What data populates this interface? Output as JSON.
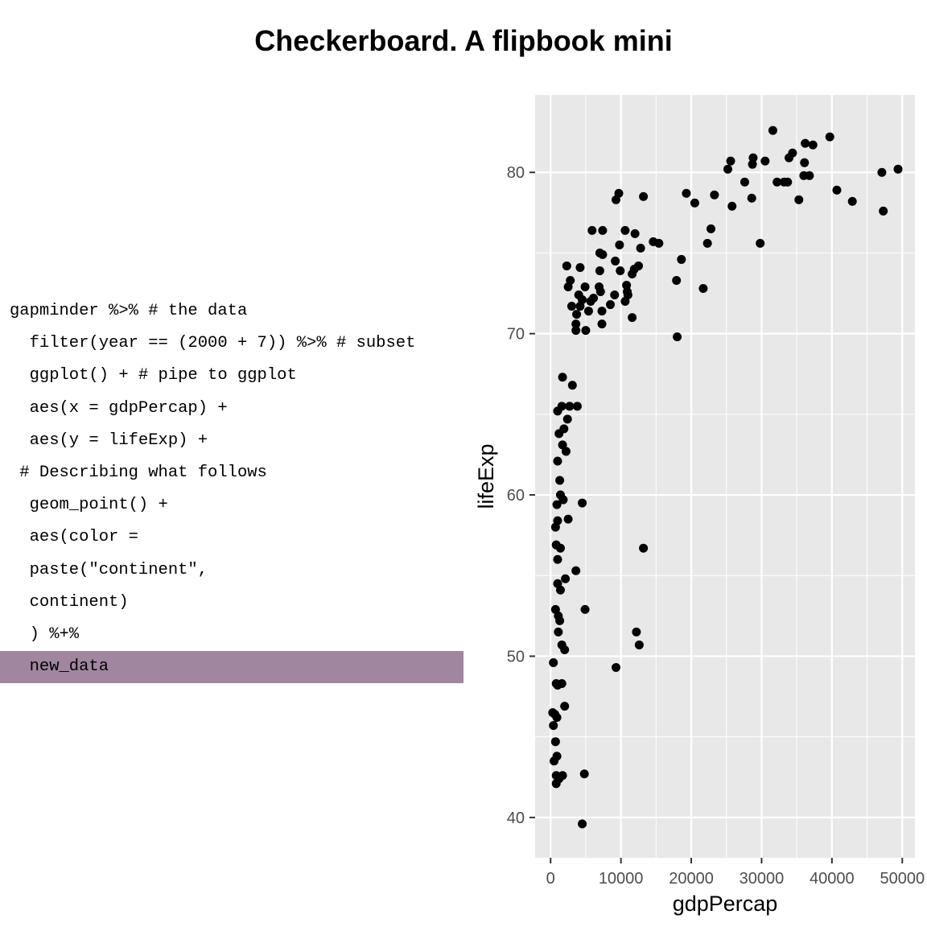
{
  "title": "Checkerboard. A flipbook mini",
  "code": {
    "highlight_color": "#a0869f",
    "lines": [
      {
        "text": "gapminder %>% # the data",
        "highlighted": false
      },
      {
        "text": "  filter(year == (2000 + 7)) %>% # subset",
        "highlighted": false
      },
      {
        "text": "  ggplot() + # pipe to ggplot",
        "highlighted": false
      },
      {
        "text": "  aes(x = gdpPercap) +",
        "highlighted": false
      },
      {
        "text": "  aes(y = lifeExp) +",
        "highlighted": false
      },
      {
        "text": " # Describing what follows",
        "highlighted": false
      },
      {
        "text": "  geom_point() +",
        "highlighted": false
      },
      {
        "text": "  aes(color =",
        "highlighted": false
      },
      {
        "text": "  paste(\"continent\",",
        "highlighted": false
      },
      {
        "text": "  continent)",
        "highlighted": false
      },
      {
        "text": "  ) %+%",
        "highlighted": false
      },
      {
        "text": "  new_data",
        "highlighted": true
      }
    ]
  },
  "chart_data": {
    "type": "scatter",
    "title": "",
    "xlabel": "gdpPercap",
    "ylabel": "lifeExp",
    "xlim": [
      -2200,
      51800
    ],
    "ylim": [
      37.5,
      84.8
    ],
    "xticks": [
      0,
      10000,
      20000,
      30000,
      40000,
      50000
    ],
    "yticks": [
      40,
      50,
      60,
      70,
      80
    ],
    "grid": true,
    "panel_color": "#e8e8e8",
    "point_color": "#000000",
    "points": [
      [
        31600,
        82.6
      ],
      [
        39700,
        82.2
      ],
      [
        36200,
        81.8
      ],
      [
        37300,
        81.7
      ],
      [
        34400,
        81.2
      ],
      [
        33900,
        80.9
      ],
      [
        28800,
        80.9
      ],
      [
        25600,
        80.7
      ],
      [
        30500,
        80.7
      ],
      [
        28700,
        80.5
      ],
      [
        36100,
        80.6
      ],
      [
        49400,
        80.2
      ],
      [
        25200,
        80.2
      ],
      [
        47100,
        80.0
      ],
      [
        36000,
        79.8
      ],
      [
        36800,
        79.8
      ],
      [
        27600,
        79.4
      ],
      [
        32200,
        79.4
      ],
      [
        33200,
        79.4
      ],
      [
        33700,
        79.4
      ],
      [
        40700,
        78.9
      ],
      [
        19300,
        78.7
      ],
      [
        9700,
        78.7
      ],
      [
        13200,
        78.5
      ],
      [
        23300,
        78.6
      ],
      [
        28600,
        78.4
      ],
      [
        35300,
        78.3
      ],
      [
        9300,
        78.3
      ],
      [
        42900,
        78.2
      ],
      [
        20500,
        78.1
      ],
      [
        25800,
        77.9
      ],
      [
        47300,
        77.6
      ],
      [
        5900,
        76.4
      ],
      [
        7400,
        76.4
      ],
      [
        10600,
        76.4
      ],
      [
        12000,
        76.2
      ],
      [
        22800,
        76.5
      ],
      [
        14600,
        75.7
      ],
      [
        15400,
        75.6
      ],
      [
        29800,
        75.6
      ],
      [
        22300,
        75.6
      ],
      [
        9800,
        75.5
      ],
      [
        12800,
        75.3
      ],
      [
        7000,
        75.0
      ],
      [
        7400,
        74.9
      ],
      [
        18600,
        74.6
      ],
      [
        9200,
        74.5
      ],
      [
        2300,
        74.2
      ],
      [
        4200,
        74.1
      ],
      [
        12500,
        74.2
      ],
      [
        11900,
        74.0
      ],
      [
        11600,
        73.7
      ],
      [
        9900,
        73.9
      ],
      [
        7000,
        73.9
      ],
      [
        17900,
        73.3
      ],
      [
        2800,
        73.3
      ],
      [
        10800,
        73.0
      ],
      [
        2500,
        72.9
      ],
      [
        4900,
        72.9
      ],
      [
        6900,
        72.9
      ],
      [
        10900,
        72.6
      ],
      [
        11000,
        72.4
      ],
      [
        7100,
        72.6
      ],
      [
        4000,
        72.4
      ],
      [
        6100,
        72.2
      ],
      [
        4500,
        72.1
      ],
      [
        5700,
        72.0
      ],
      [
        9100,
        72.4
      ],
      [
        10600,
        72.0
      ],
      [
        8500,
        71.8
      ],
      [
        4200,
        71.7
      ],
      [
        3000,
        71.7
      ],
      [
        7300,
        71.4
      ],
      [
        5400,
        71.4
      ],
      [
        3700,
        71.2
      ],
      [
        11600,
        71.0
      ],
      [
        3600,
        70.6
      ],
      [
        7300,
        70.6
      ],
      [
        3600,
        70.2
      ],
      [
        5000,
        70.2
      ],
      [
        18000,
        69.8
      ],
      [
        21700,
        72.8
      ],
      [
        1700,
        67.3
      ],
      [
        3100,
        66.8
      ],
      [
        1600,
        65.5
      ],
      [
        2700,
        65.5
      ],
      [
        3800,
        65.5
      ],
      [
        1000,
        65.2
      ],
      [
        2400,
        64.7
      ],
      [
        1900,
        64.1
      ],
      [
        1200,
        63.8
      ],
      [
        1700,
        63.1
      ],
      [
        2200,
        62.7
      ],
      [
        1000,
        62.1
      ],
      [
        1300,
        60.9
      ],
      [
        1400,
        60.0
      ],
      [
        1800,
        59.7
      ],
      [
        900,
        59.4
      ],
      [
        4500,
        59.5
      ],
      [
        2500,
        58.5
      ],
      [
        1000,
        58.4
      ],
      [
        700,
        58.0
      ],
      [
        800,
        56.9
      ],
      [
        1400,
        56.7
      ],
      [
        13200,
        56.7
      ],
      [
        1000,
        56.0
      ],
      [
        3600,
        55.3
      ],
      [
        2100,
        54.8
      ],
      [
        1000,
        54.5
      ],
      [
        1400,
        54.1
      ],
      [
        700,
        52.9
      ],
      [
        1100,
        52.5
      ],
      [
        1300,
        52.2
      ],
      [
        4900,
        52.9
      ],
      [
        1100,
        51.5
      ],
      [
        12200,
        51.5
      ],
      [
        12600,
        50.7
      ],
      [
        1600,
        50.7
      ],
      [
        2000,
        50.4
      ],
      [
        400,
        49.6
      ],
      [
        9300,
        49.3
      ],
      [
        800,
        48.3
      ],
      [
        1600,
        48.3
      ],
      [
        1000,
        48.2
      ],
      [
        2000,
        46.9
      ],
      [
        300,
        46.5
      ],
      [
        600,
        46.4
      ],
      [
        900,
        46.2
      ],
      [
        400,
        45.7
      ],
      [
        700,
        44.7
      ],
      [
        900,
        43.8
      ],
      [
        500,
        43.5
      ],
      [
        800,
        42.6
      ],
      [
        1700,
        42.6
      ],
      [
        4800,
        42.7
      ],
      [
        800,
        42.1
      ],
      [
        1200,
        42.4
      ],
      [
        4500,
        39.6
      ]
    ]
  }
}
